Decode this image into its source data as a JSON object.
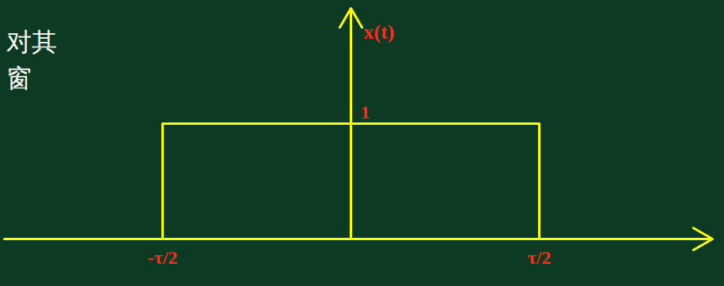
{
  "chart_data": {
    "type": "line",
    "x": [
      -0.5,
      -0.5,
      0.5,
      0.5
    ],
    "values": [
      0,
      1,
      1,
      0
    ],
    "color": "#ffff00",
    "xlim": [
      -0.92,
      0.96
    ],
    "ylim": [
      0,
      2
    ],
    "xticks": [
      {
        "value": -0.5,
        "label": "-τ/2"
      },
      {
        "value": 0.5,
        "label": "τ/2"
      }
    ],
    "yticks": [
      1
    ],
    "y_label": "x(t)",
    "annotations": [
      "对其",
      "窗"
    ]
  }
}
